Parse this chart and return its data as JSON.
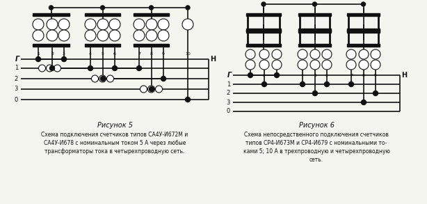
{
  "background_color": "#f5f5f0",
  "fig_width": 6.14,
  "fig_height": 2.93,
  "dpi": 100,
  "left_diagram": {
    "title": "Рисунок 5",
    "caption_line1": "Схема подключения счетчиков типов СА4У-И672М и",
    "caption_line2": "СА4У-И678 с номинальным током 5 А через любые",
    "caption_line3": "трансформаторы тока в четырехпроводную сеть."
  },
  "right_diagram": {
    "title": "Рисунок 6",
    "caption_line1": "Схема непосредственного подключения счетчиков",
    "caption_line2": "типов СР4-И673М и СР4-И679 с номинальными то-",
    "caption_line3": "ками 5; 10 А в трехпроводную и четырехпроводную",
    "caption_line4": "сеть."
  },
  "line_color": "#111111",
  "text_color": "#111111"
}
